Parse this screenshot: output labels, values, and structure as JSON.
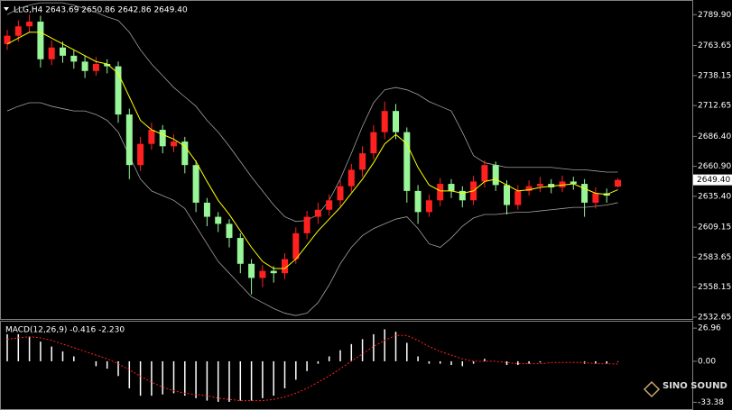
{
  "chart_data": [
    {
      "type": "candlestick",
      "title": "LLG,H4 2643.69 2650.86 2642.86 2649.40",
      "open": [
        2765,
        2772,
        2780,
        2784,
        2752,
        2762,
        2755,
        2750,
        2742,
        2748,
        2746,
        2705,
        2662,
        2680,
        2692,
        2678,
        2682,
        2662,
        2630,
        2618,
        2612,
        2600,
        2578,
        2566,
        2572,
        2570,
        2582,
        2604,
        2618,
        2624,
        2632,
        2644,
        2658,
        2672,
        2690,
        2708,
        2690,
        2640,
        2622,
        2632,
        2646,
        2640,
        2632,
        2648,
        2662,
        2645,
        2628,
        2640,
        2644,
        2646,
        2643,
        2648,
        2646,
        2630,
        2638,
        2643.69
      ],
      "high": [
        2777,
        2785,
        2790,
        2789,
        2768,
        2767,
        2760,
        2755,
        2754,
        2752,
        2750,
        2710,
        2686,
        2698,
        2696,
        2688,
        2686,
        2666,
        2634,
        2622,
        2616,
        2604,
        2582,
        2577,
        2576,
        2587,
        2609,
        2623,
        2630,
        2637,
        2649,
        2663,
        2678,
        2696,
        2716,
        2714,
        2694,
        2645,
        2637,
        2651,
        2650,
        2644,
        2653,
        2666,
        2665,
        2649,
        2645,
        2649,
        2652,
        2650,
        2653,
        2652,
        2650,
        2643,
        2642,
        2650.86
      ],
      "low": [
        2760,
        2767,
        2775,
        2745,
        2747,
        2749,
        2744,
        2736,
        2738,
        2740,
        2698,
        2650,
        2657,
        2675,
        2672,
        2673,
        2655,
        2622,
        2610,
        2605,
        2592,
        2570,
        2552,
        2558,
        2562,
        2565,
        2578,
        2599,
        2612,
        2619,
        2627,
        2639,
        2652,
        2667,
        2684,
        2684,
        2630,
        2612,
        2618,
        2627,
        2634,
        2626,
        2628,
        2643,
        2640,
        2620,
        2624,
        2636,
        2639,
        2638,
        2639,
        2641,
        2618,
        2625,
        2630,
        2642.86
      ],
      "close": [
        2772,
        2780,
        2784,
        2752,
        2762,
        2755,
        2750,
        2742,
        2748,
        2746,
        2705,
        2662,
        2680,
        2692,
        2678,
        2682,
        2662,
        2630,
        2618,
        2612,
        2600,
        2578,
        2566,
        2572,
        2570,
        2582,
        2604,
        2618,
        2624,
        2632,
        2644,
        2658,
        2672,
        2690,
        2708,
        2690,
        2640,
        2622,
        2632,
        2646,
        2640,
        2632,
        2648,
        2662,
        2645,
        2628,
        2640,
        2644,
        2646,
        2643,
        2648,
        2646,
        2630,
        2638,
        2636,
        2649.4
      ],
      "up_color": "#ff2020",
      "down_color": "#98f598",
      "ma": {
        "color": "#ffff00",
        "values": [
          2765,
          2770,
          2775,
          2775,
          2770,
          2765,
          2760,
          2755,
          2750,
          2748,
          2740,
          2720,
          2700,
          2692,
          2688,
          2684,
          2678,
          2665,
          2648,
          2632,
          2620,
          2606,
          2592,
          2580,
          2574,
          2574,
          2582,
          2594,
          2606,
          2616,
          2626,
          2638,
          2650,
          2664,
          2680,
          2688,
          2680,
          2660,
          2645,
          2640,
          2640,
          2638,
          2640,
          2648,
          2650,
          2645,
          2640,
          2641,
          2643,
          2644,
          2645,
          2646,
          2642,
          2638,
          2637,
          2641
        ]
      },
      "bands": {
        "color": "#a0a0a0",
        "upper": [
          2790,
          2795,
          2798,
          2800,
          2800,
          2800,
          2798,
          2795,
          2792,
          2788,
          2785,
          2775,
          2760,
          2748,
          2738,
          2728,
          2720,
          2712,
          2700,
          2690,
          2678,
          2665,
          2652,
          2640,
          2628,
          2618,
          2614,
          2615,
          2620,
          2632,
          2650,
          2672,
          2695,
          2715,
          2726,
          2728,
          2726,
          2722,
          2716,
          2712,
          2708,
          2690,
          2670,
          2664,
          2662,
          2660,
          2660,
          2660,
          2660,
          2660,
          2659,
          2658,
          2658,
          2657,
          2656,
          2656
        ],
        "lower": [
          2708,
          2712,
          2715,
          2715,
          2712,
          2710,
          2708,
          2708,
          2705,
          2700,
          2690,
          2670,
          2650,
          2640,
          2636,
          2632,
          2625,
          2610,
          2595,
          2580,
          2570,
          2560,
          2550,
          2545,
          2540,
          2536,
          2534,
          2536,
          2545,
          2560,
          2578,
          2592,
          2602,
          2608,
          2612,
          2616,
          2618,
          2608,
          2595,
          2592,
          2600,
          2610,
          2617,
          2620,
          2620,
          2621,
          2622,
          2622,
          2623,
          2624,
          2625,
          2626,
          2626,
          2627,
          2628,
          2630
        ]
      },
      "current_price": {
        "value": 2649.4,
        "label": "2649.40"
      },
      "ylim": [
        2530.3,
        2802.4
      ],
      "yticks": [
        {
          "value": 2789.9,
          "label": "2789.90"
        },
        2763.65,
        2738.15,
        2712.65,
        {
          "value": 2686.4,
          "label": "2686.40"
        },
        {
          "value": 2660.9,
          "label": "2660.90"
        },
        {
          "value": 2635.4,
          "label": "2635.40"
        },
        2609.15,
        2583.65,
        2558.15,
        2532.65
      ],
      "watermark": "SINO SOUND"
    },
    {
      "type": "macd",
      "title": "MACD(12,26,9) -0.416 -2.230",
      "histogram": {
        "color": "#ffffff",
        "values": [
          22,
          22,
          20,
          16,
          12,
          8,
          4,
          0,
          -4,
          -6,
          -12,
          -22,
          -28,
          -28,
          -27,
          -26,
          -28,
          -30,
          -32,
          -33,
          -33,
          -32,
          -32,
          -30,
          -28,
          -22,
          -15,
          -8,
          -2,
          4,
          9,
          14,
          18,
          22,
          26,
          24,
          15,
          4,
          -2,
          -2,
          -3,
          -4,
          -2,
          2,
          0,
          -3,
          -3,
          -2,
          -1,
          0,
          0,
          0,
          -2,
          -2,
          -2,
          -0.416
        ]
      },
      "signal": {
        "color": "#ff2020",
        "values": [
          18,
          19,
          20,
          19,
          17,
          14,
          11,
          8,
          5,
          2,
          -2,
          -7,
          -12,
          -17,
          -21,
          -24,
          -26,
          -27,
          -28,
          -30,
          -31,
          -32,
          -32,
          -32,
          -31,
          -29,
          -26,
          -22,
          -17,
          -12,
          -6,
          0,
          6,
          12,
          17,
          21,
          21,
          17,
          12,
          8,
          5,
          2,
          0,
          0,
          0,
          -1,
          -2,
          -2,
          -2,
          -1,
          -1,
          -1,
          -1,
          -2,
          -2,
          -2.23
        ]
      },
      "ylim": [
        -38.9,
        32.2
      ],
      "yticks": [
        26.96,
        {
          "value": 0,
          "label": "0.00"
        },
        -33.38
      ]
    }
  ]
}
